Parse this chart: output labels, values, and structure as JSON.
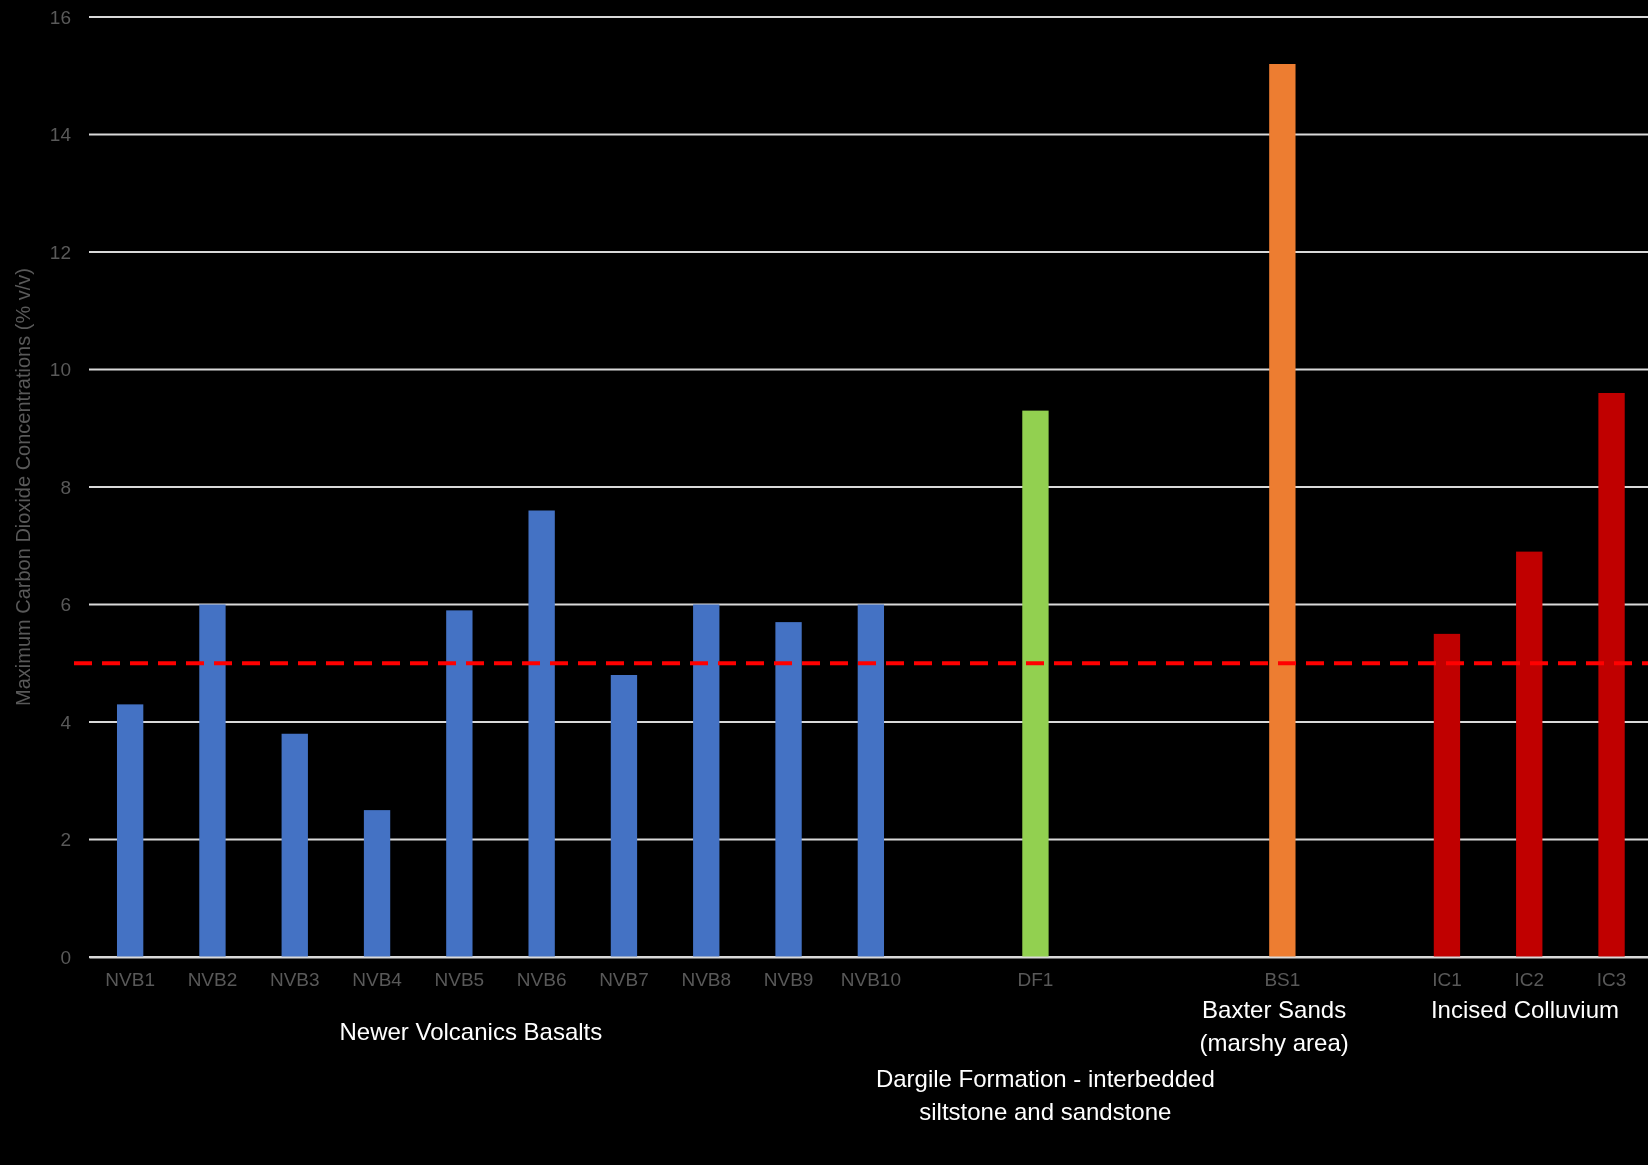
{
  "chart_data": {
    "type": "bar",
    "ylabel": "Maximum Carbon Dioxide Concentrations (% v/v)",
    "categories": [
      "NVB1",
      "NVB2",
      "NVB3",
      "NVB4",
      "NVB5",
      "NVB6",
      "NVB7",
      "NVB8",
      "NVB9",
      "NVB10",
      null,
      "DF1",
      null,
      null,
      "BS1",
      null,
      "IC1",
      "IC2",
      "IC3"
    ],
    "values": [
      4.3,
      6.0,
      3.8,
      2.5,
      5.9,
      7.6,
      4.8,
      6.0,
      5.7,
      6.0,
      null,
      9.3,
      null,
      null,
      15.2,
      null,
      5.5,
      6.9,
      9.6
    ],
    "colors": [
      "#4472c4",
      "#4472c4",
      "#4472c4",
      "#4472c4",
      "#4472c4",
      "#4472c4",
      "#4472c4",
      "#4472c4",
      "#4472c4",
      "#4472c4",
      null,
      "#92d050",
      null,
      null,
      "#ed7d31",
      null,
      "#c00000",
      "#c00000",
      "#c00000"
    ],
    "ylim": [
      0,
      16
    ],
    "yticks": [
      0,
      2,
      4,
      6,
      8,
      10,
      12,
      14,
      16
    ],
    "grid": "y",
    "ref_lines": [
      {
        "axis": "y",
        "value": 5,
        "color": "#ff0000",
        "line_style": "dashed"
      }
    ],
    "annotations": [
      "Newer Volcanics Basalts",
      "Dargile Formation - interbedded siltstone and sandstone",
      "Baxter Sands (marshy area)",
      "Incised Colluvium"
    ]
  }
}
